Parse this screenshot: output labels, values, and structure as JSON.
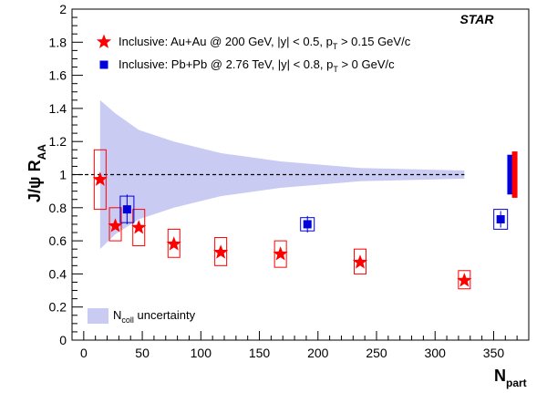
{
  "chart_data": {
    "type": "scatter",
    "experiment_label": "STAR",
    "xlabel": "N",
    "xlabel_sub": "part",
    "ylabel": "J/ψ R",
    "ylabel_sub": "AA",
    "xlim": [
      -10,
      380
    ],
    "ylim": [
      0,
      2
    ],
    "x_ticks": [
      0,
      50,
      100,
      150,
      200,
      250,
      300,
      350
    ],
    "y_ticks": [
      0,
      0.2,
      0.4,
      0.6,
      0.8,
      1,
      1.2,
      1.4,
      1.6,
      1.8,
      2
    ],
    "y_tick_labels": [
      "0",
      "0.2",
      "0.4",
      "0.6",
      "0.8",
      "1",
      "1.2",
      "1.4",
      "1.6",
      "1.8",
      "2"
    ],
    "grid": false,
    "legend_position": "top-left",
    "reference_line": {
      "y": 1,
      "style": "dashed",
      "x_to": 325
    },
    "series": [
      {
        "name": "Inclusive: Au+Au @ 200 GeV, |y| < 0.5, p",
        "name_sub": "T",
        "name_tail": " > 0.15 GeV/c",
        "marker": "star",
        "color": "#ff0000",
        "points": [
          {
            "x": 14,
            "y": 0.97,
            "sys_lo": 0.79,
            "sys_hi": 1.15
          },
          {
            "x": 27,
            "y": 0.69,
            "sys_lo": 0.6,
            "sys_hi": 0.8
          },
          {
            "x": 47,
            "y": 0.68,
            "sys_lo": 0.57,
            "sys_hi": 0.79
          },
          {
            "x": 77,
            "y": 0.58,
            "sys_lo": 0.5,
            "sys_hi": 0.67
          },
          {
            "x": 117,
            "y": 0.53,
            "sys_lo": 0.45,
            "sys_hi": 0.62
          },
          {
            "x": 168,
            "y": 0.52,
            "sys_lo": 0.44,
            "sys_hi": 0.6
          },
          {
            "x": 236,
            "y": 0.47,
            "sys_lo": 0.4,
            "sys_hi": 0.55
          },
          {
            "x": 325,
            "y": 0.36,
            "sys_lo": 0.31,
            "sys_hi": 0.42
          }
        ]
      },
      {
        "name": "Inclusive: Pb+Pb @ 2.76 TeV, |y| < 0.8, p",
        "name_sub": "T",
        "name_tail": " > 0 GeV/c",
        "marker": "square",
        "color": "#0000dd",
        "points": [
          {
            "x": 37,
            "y": 0.79,
            "stat": 0.09,
            "sys_lo": 0.71,
            "sys_hi": 0.87
          },
          {
            "x": 191,
            "y": 0.7,
            "stat": 0.05,
            "sys_lo": 0.66,
            "sys_hi": 0.74
          },
          {
            "x": 356,
            "y": 0.73,
            "stat": 0.05,
            "sys_lo": 0.67,
            "sys_hi": 0.79
          }
        ]
      }
    ],
    "ncoll_band": {
      "label": "N",
      "label_sub": "coll",
      "label_tail": " uncertainty",
      "color": "#c9cbf3",
      "x": [
        14,
        27,
        47,
        77,
        117,
        168,
        236,
        325
      ],
      "upper": [
        1.45,
        1.37,
        1.27,
        1.2,
        1.13,
        1.08,
        1.04,
        1.025
      ],
      "lower": [
        0.55,
        0.64,
        0.73,
        0.8,
        0.87,
        0.92,
        0.96,
        0.975
      ]
    },
    "global_uncertainties": [
      {
        "color": "#0000dd",
        "x": 364,
        "lo": 0.88,
        "hi": 1.12
      },
      {
        "color": "#ff0000",
        "x": 368,
        "lo": 0.86,
        "hi": 1.14
      }
    ]
  }
}
